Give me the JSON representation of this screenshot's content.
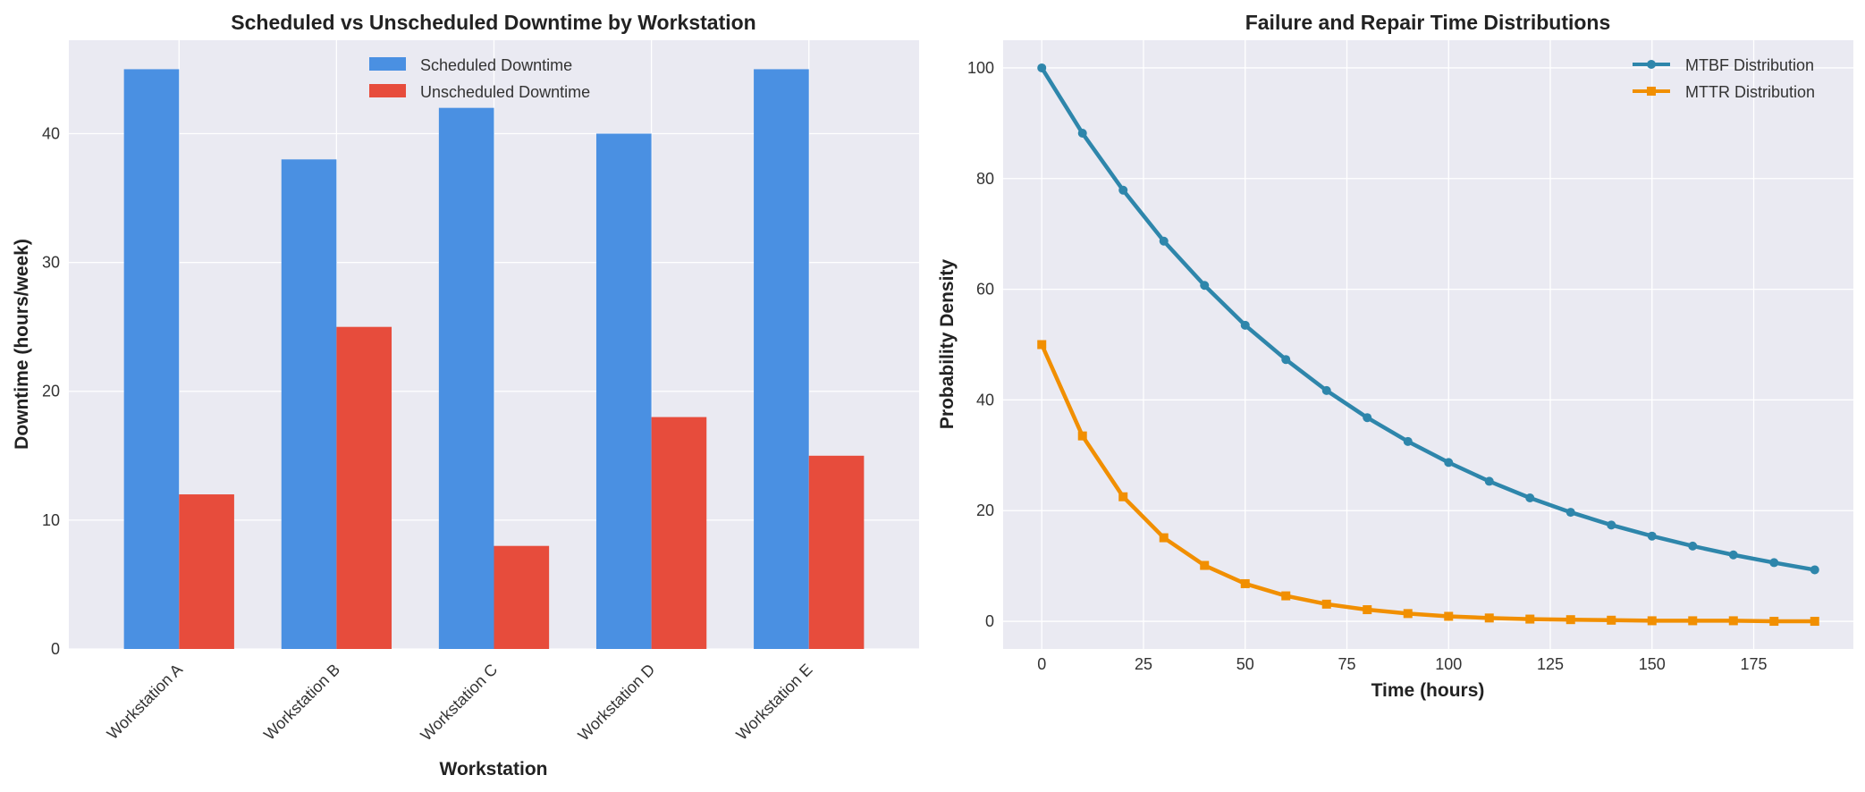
{
  "chart_data": [
    {
      "type": "bar",
      "title": "Scheduled vs Unscheduled Downtime by Workstation",
      "xlabel": "Workstation",
      "ylabel": "Downtime (hours/week)",
      "categories": [
        "Workstation A",
        "Workstation B",
        "Workstation C",
        "Workstation D",
        "Workstation E"
      ],
      "series": [
        {
          "name": "Scheduled Downtime",
          "color": "#4a90e2",
          "values": [
            45,
            38,
            42,
            40,
            45
          ]
        },
        {
          "name": "Unscheduled Downtime",
          "color": "#e74c3c",
          "values": [
            12,
            25,
            8,
            18,
            15
          ]
        }
      ],
      "ylim": [
        0,
        47.25
      ],
      "yticks": [
        0,
        10,
        20,
        30,
        40
      ],
      "grid": true,
      "legend": "upper-center"
    },
    {
      "type": "line",
      "title": "Failure and Repair Time Distributions",
      "xlabel": "Time (hours)",
      "ylabel": "Probability Density",
      "x": [
        0,
        10,
        20,
        30,
        40,
        50,
        60,
        70,
        80,
        90,
        100,
        110,
        120,
        130,
        140,
        150,
        160,
        170,
        180,
        190
      ],
      "series": [
        {
          "name": "MTBF Distribution",
          "color": "#2e86ab",
          "marker": "circle",
          "values": [
            100,
            88.2,
            77.9,
            68.7,
            60.7,
            53.5,
            47.3,
            41.7,
            36.8,
            32.5,
            28.7,
            25.3,
            22.3,
            19.7,
            17.4,
            15.4,
            13.6,
            12.0,
            10.6,
            9.3
          ]
        },
        {
          "name": "MTTR Distribution",
          "color": "#f18f01",
          "marker": "square",
          "values": [
            50,
            33.5,
            22.5,
            15.1,
            10.1,
            6.8,
            4.6,
            3.1,
            2.1,
            1.4,
            0.9,
            0.6,
            0.4,
            0.3,
            0.2,
            0.1,
            0.1,
            0.1,
            0.0,
            0.0
          ]
        }
      ],
      "xlim": [
        -9.5,
        199.5
      ],
      "ylim": [
        -5,
        105
      ],
      "xticks": [
        0,
        25,
        50,
        75,
        100,
        125,
        150,
        175
      ],
      "yticks": [
        0,
        20,
        40,
        60,
        80,
        100
      ],
      "grid": true,
      "legend": "top-right"
    }
  ]
}
